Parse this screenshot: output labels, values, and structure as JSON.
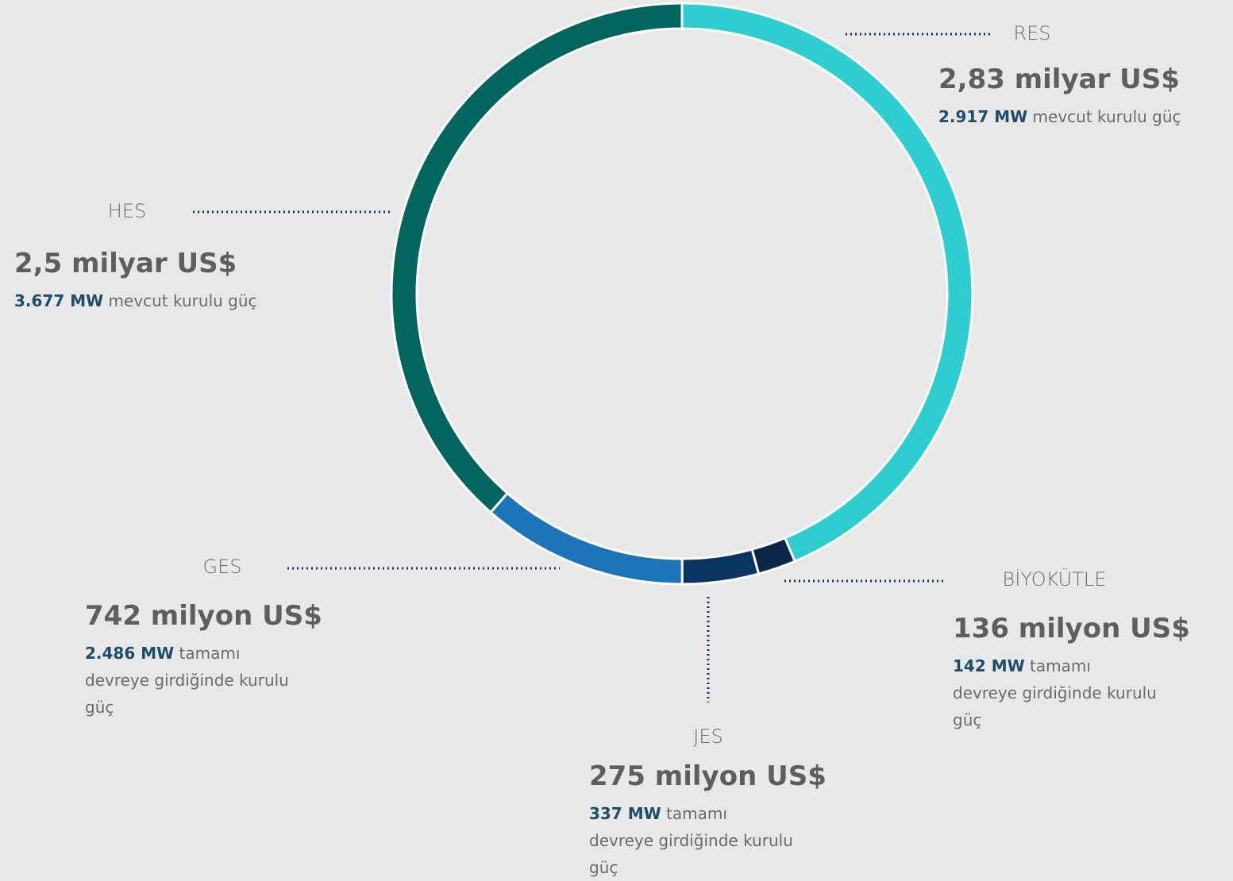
{
  "chart_data": {
    "type": "pie",
    "categories": [
      "RES",
      "BİYOKÜTLE",
      "JES",
      "GES",
      "HES"
    ],
    "values": [
      2830000000,
      136000000,
      275000000,
      742000000,
      2500000000
    ],
    "value_labels": [
      "2,83 milyar US$",
      "136 milyon US$",
      "275 milyon US$",
      "742 milyon US$",
      "2,5 milyar US$"
    ],
    "capacities": [
      "2.917 MW",
      "142 MW",
      "337 MW",
      "2.486 MW",
      "3.677 MW"
    ],
    "capacity_notes": [
      "mevcut kurulu güç",
      "tamamı devreye girdiğinde  kurulu güç",
      "tamamı devreye girdiğinde  kurulu güç",
      "tamamı devreye girdiğinde  kurulu güç",
      "mevcut kurulu güç"
    ],
    "colors": [
      "#2ecdcf",
      "#0b2748",
      "#0a3461",
      "#1b73b8",
      "#00655f"
    ]
  }
}
